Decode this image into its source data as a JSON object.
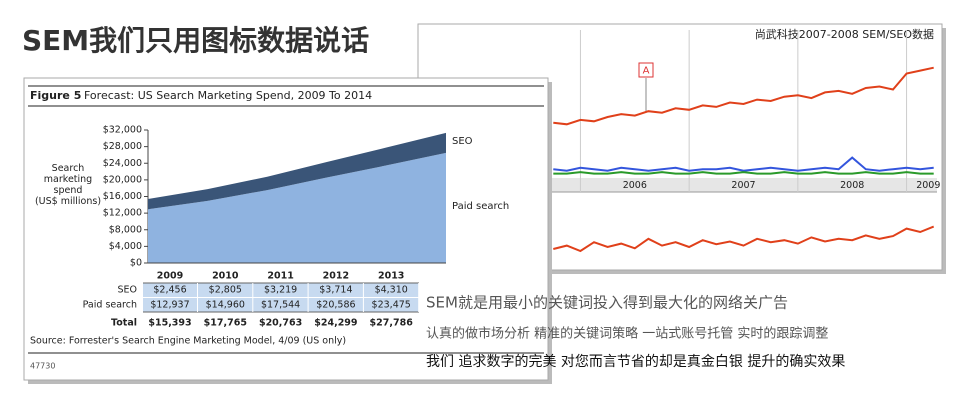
{
  "title": "SEM我们只用图标数据说话",
  "chart_data": [
    {
      "type": "area",
      "stacked": true,
      "figure_label": "Figure 5",
      "title": "Forecast: US Search Marketing Spend, 2009 To 2014",
      "y_label": "Search marketing spend (US$ millions)",
      "categories": [
        "2009",
        "2010",
        "2011",
        "2012",
        "2013",
        null
      ],
      "series": [
        {
          "name": "Paid search",
          "color": "#8fb3e0",
          "values": [
            12937,
            14960,
            17544,
            20586,
            23475,
            26500
          ],
          "value_labels": [
            "$12,937",
            "$14,960",
            "$17,544",
            "$20,586",
            "$23,475",
            null
          ]
        },
        {
          "name": "SEO",
          "color": "#3a5578",
          "values": [
            2456,
            2805,
            3219,
            3714,
            4310,
            4800
          ],
          "value_labels": [
            "$2,456",
            "$2,805",
            "$3,219",
            "$3,714",
            "$4,310",
            null
          ]
        }
      ],
      "total_label": "Total",
      "total_labels": [
        "$15,393",
        "$17,765",
        "$20,763",
        "$24,299",
        "$27,786",
        null
      ],
      "ylim": [
        0,
        32000
      ],
      "yticks": [
        {
          "value": 0,
          "label": "$0"
        },
        {
          "value": 4000,
          "label": "$4,000"
        },
        {
          "value": 8000,
          "label": "$8,000"
        },
        {
          "value": 12000,
          "label": "$12,000"
        },
        {
          "value": 16000,
          "label": "$16,000"
        },
        {
          "value": 20000,
          "label": "$20,000"
        },
        {
          "value": 24000,
          "label": "$24,000"
        },
        {
          "value": 28000,
          "label": "$28,000"
        },
        {
          "value": 32000,
          "label": "$32,000"
        }
      ],
      "source": "Source: Forrester's Search Engine Marketing Model, 4/09 (US only)",
      "footnote": "47730"
    },
    {
      "type": "line",
      "caption": "尚武科技2007-2008 SEM/SEO数据",
      "annotation": "A",
      "x": [
        2005.75,
        2005.875,
        2006,
        2006.125,
        2006.25,
        2006.375,
        2006.5,
        2006.625,
        2006.75,
        2006.875,
        2007,
        2007.125,
        2007.25,
        2007.375,
        2007.5,
        2007.625,
        2007.75,
        2007.875,
        2008,
        2008.125,
        2008.25,
        2008.375,
        2008.5,
        2008.625,
        2008.75,
        2008.875,
        2009,
        2009.125,
        2009.25
      ],
      "xlim": [
        2005.72,
        2009.28
      ],
      "xticks": [
        {
          "value": 2006.5,
          "label": "2006"
        },
        {
          "value": 2007.5,
          "label": "2007"
        },
        {
          "value": 2008.5,
          "label": "2008"
        },
        {
          "value": 2009.2,
          "label": "2009"
        }
      ],
      "xgrid": [
        2006,
        2007,
        2008,
        2009
      ],
      "ylim": [
        0,
        100
      ],
      "series": [
        {
          "color": "#e0401a",
          "values": [
            36,
            35,
            38,
            37,
            40,
            42,
            41,
            44,
            43,
            46,
            45,
            48,
            47,
            50,
            49,
            52,
            51,
            54,
            55,
            53,
            57,
            58,
            56,
            60,
            61,
            59,
            70,
            72,
            74
          ]
        },
        {
          "color": "#3355dd",
          "values": [
            4,
            3,
            5,
            4,
            3,
            5,
            4,
            3,
            4,
            5,
            3,
            4,
            4,
            5,
            3,
            4,
            5,
            4,
            3,
            4,
            5,
            4,
            12,
            4,
            3,
            4,
            5,
            4,
            5
          ]
        },
        {
          "color": "#2a9a2a",
          "values": [
            1,
            1,
            2,
            1,
            1,
            2,
            1,
            1,
            2,
            1,
            1,
            2,
            1,
            1,
            2,
            1,
            1,
            2,
            1,
            1,
            2,
            1,
            1,
            2,
            1,
            1,
            2,
            1,
            1
          ]
        }
      ]
    },
    {
      "type": "line",
      "x": [
        2005.75,
        2005.875,
        2006,
        2006.125,
        2006.25,
        2006.375,
        2006.5,
        2006.625,
        2006.75,
        2006.875,
        2007,
        2007.125,
        2007.25,
        2007.375,
        2007.5,
        2007.625,
        2007.75,
        2007.875,
        2008,
        2008.125,
        2008.25,
        2008.375,
        2008.5,
        2008.625,
        2008.75,
        2008.875,
        2009,
        2009.125,
        2009.25
      ],
      "xlim": [
        2005.72,
        2009.28
      ],
      "ylim": [
        0,
        100
      ],
      "series": [
        {
          "color": "#e0401a",
          "values": [
            25,
            30,
            22,
            35,
            28,
            33,
            26,
            40,
            30,
            35,
            28,
            38,
            32,
            36,
            30,
            40,
            35,
            38,
            33,
            42,
            36,
            40,
            38,
            45,
            40,
            44,
            55,
            50,
            58
          ]
        }
      ]
    }
  ],
  "taglines": [
    "SEM就是用最小的关键词投入得到最大化的网络关广告",
    "认真的做市场分析   精准的关键词策略   一站式账号托管    实时的跟踪调整",
    "我们 追求数字的完美 对您而言节省的却是真金白银 提升的确实效果"
  ]
}
